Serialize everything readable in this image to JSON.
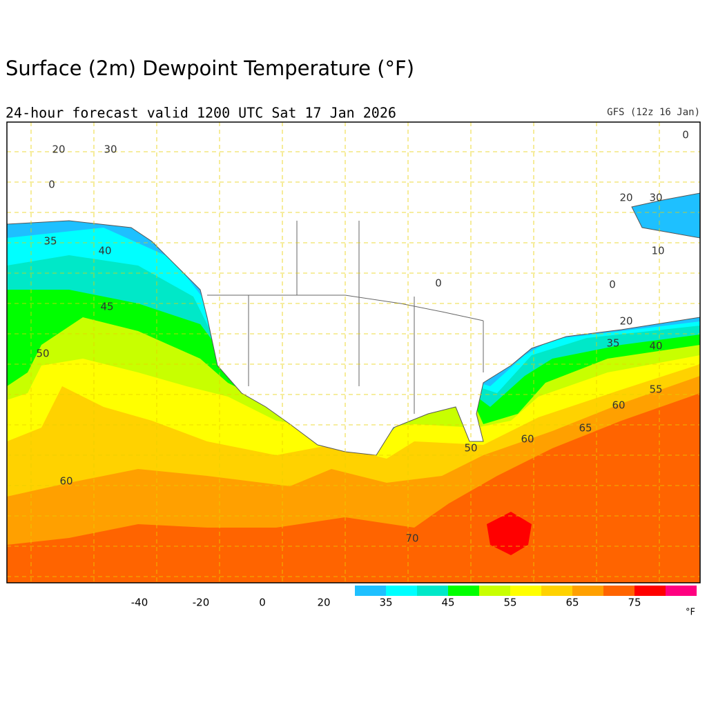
{
  "header": {
    "title": "Surface (2m) Dewpoint Temperature (°F)",
    "subtitle": "24-hour forecast valid 1200 UTC Sat 17 Jan 2026",
    "model": "GFS (12z 16 Jan)"
  },
  "map": {
    "contour_labels": [
      20,
      30,
      0,
      35,
      40,
      45,
      50,
      60,
      0,
      10,
      0,
      20,
      30,
      0,
      20,
      35,
      40,
      55,
      60,
      65,
      60,
      50,
      70
    ]
  },
  "colorbar": {
    "labels": [
      -40,
      -20,
      0,
      20,
      35,
      45,
      55,
      65,
      75
    ],
    "colors": [
      "#1ec0ff",
      "#00ffff",
      "#00e8c8",
      "#00ff00",
      "#c8ff00",
      "#ffff00",
      "#ffd200",
      "#ffa000",
      "#ff6400",
      "#ff0000",
      "#ff0080"
    ],
    "unit": "°F"
  }
}
